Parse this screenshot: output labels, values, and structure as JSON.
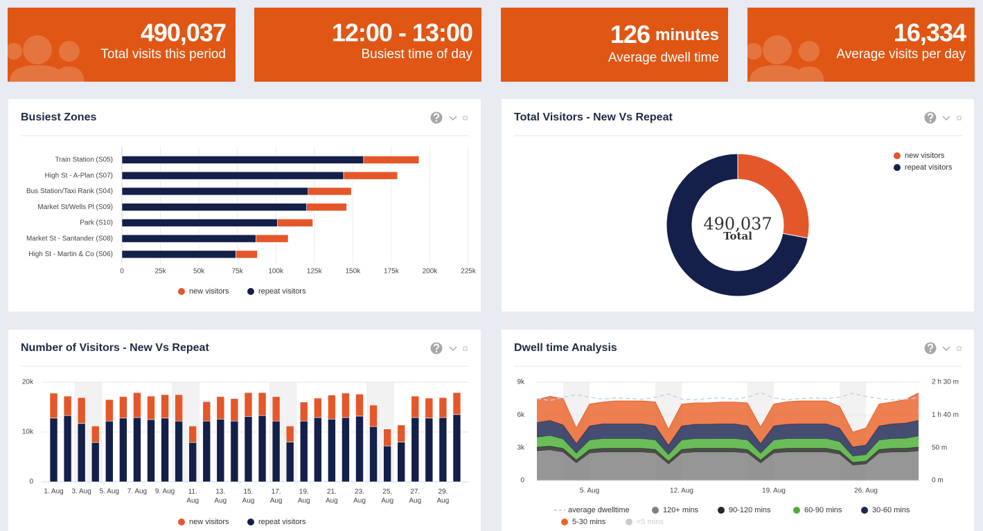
{
  "kpis": [
    {
      "value": "490,037",
      "label": "Total visits this period"
    },
    {
      "value": "12:00 - 13:00",
      "label": "Busiest time of day"
    },
    {
      "value": "126",
      "unit": "minutes",
      "label": "Average dwell time"
    },
    {
      "value": "16,334",
      "label": "Average visits per day"
    }
  ],
  "chart_data": [
    {
      "type": "bar",
      "title": "Busiest Zones",
      "categories": [
        "Train Station (S05)",
        "High St - A-Plan (S07)",
        "Bus Station/Taxi Rank (S04)",
        "Market St/Wells Pl (S09)",
        "Park (S10)",
        "Market St - Santander (S08)",
        "High St - Martin & Co (S06)"
      ],
      "series": [
        {
          "name": "new visitors",
          "color": "#e4572a",
          "values": [
            36000,
            35000,
            28000,
            26000,
            23000,
            21000,
            14000
          ]
        },
        {
          "name": "repeat visitors",
          "color": "#14204a",
          "values": [
            157000,
            144000,
            121000,
            120000,
            101000,
            87000,
            74000
          ]
        }
      ],
      "xlim": [
        0,
        225000
      ],
      "xticks": [
        0,
        {
          "value": 25000,
          "label": "25k"
        },
        {
          "value": 50000,
          "label": "50k"
        },
        {
          "value": 75000,
          "label": "75k"
        },
        {
          "value": 100000,
          "label": "100k"
        },
        {
          "value": 125000,
          "label": "125k"
        },
        {
          "value": 150000,
          "label": "150k"
        },
        {
          "value": 175000,
          "label": "175k"
        },
        {
          "value": 200000,
          "label": "200k"
        },
        {
          "value": 225000,
          "label": "225k"
        }
      ],
      "grid": true
    },
    {
      "type": "pie",
      "title": "Total Visitors - New Vs Repeat",
      "categories": [
        "new visitors",
        "repeat visitors"
      ],
      "values": [
        137000,
        353037
      ],
      "colors": [
        "#e4572a",
        "#14204a"
      ],
      "center_value": "490,037",
      "center_label": "Total"
    },
    {
      "type": "column",
      "title": "Number of Visitors - New Vs Repeat",
      "categories": [
        "1. Aug",
        null,
        "3. Aug",
        null,
        "5. Aug",
        null,
        "7. Aug",
        null,
        "9. Aug",
        null,
        "11. Aug",
        null,
        "13. Aug",
        null,
        "15. Aug",
        null,
        "17. Aug",
        null,
        "19. Aug",
        null,
        "21. Aug",
        null,
        "23. Aug",
        null,
        "25. Aug",
        null,
        "27. Aug",
        null,
        "29. Aug",
        null
      ],
      "series": [
        {
          "name": "new visitors",
          "color": "#e4572a",
          "values": [
            5000,
            3900,
            5200,
            3300,
            4300,
            4300,
            5000,
            4700,
            4700,
            5300,
            3300,
            3900,
            4500,
            4500,
            4800,
            4600,
            4900,
            3200,
            3800,
            3900,
            4800,
            4900,
            4400,
            4300,
            3400,
            3400,
            4300,
            4000,
            4000,
            4400
          ]
        },
        {
          "name": "repeat visitors",
          "color": "#14204a",
          "values": [
            12800,
            13300,
            11700,
            7900,
            12200,
            12800,
            12900,
            12500,
            12800,
            12200,
            7900,
            12200,
            12600,
            12200,
            13100,
            13300,
            12200,
            8000,
            12200,
            12900,
            12600,
            12900,
            13200,
            11100,
            7200,
            8000,
            12900,
            12800,
            12900,
            13500
          ]
        }
      ],
      "ylim": [
        0,
        20000
      ],
      "yticks": [
        0,
        {
          "value": 10000,
          "label": "10k"
        },
        {
          "value": 20000,
          "label": "20k"
        }
      ],
      "weekend_bands": [
        [
          2,
          3
        ],
        [
          9,
          10
        ],
        [
          16,
          17
        ],
        [
          23,
          24
        ]
      ],
      "grid": true
    },
    {
      "type": "area",
      "title": "Dwell time Analysis",
      "categories": [
        null,
        null,
        null,
        null,
        "5. Aug",
        null,
        null,
        null,
        null,
        null,
        null,
        "12. Aug",
        null,
        null,
        null,
        null,
        null,
        null,
        "19. Aug",
        null,
        null,
        null,
        null,
        null,
        null,
        "26. Aug",
        null,
        null,
        null,
        null
      ],
      "series": [
        {
          "name": "average dwelltime",
          "color": "#c3d1ef",
          "axis": "y2",
          "values": [
            125,
            122,
            127,
            131,
            127,
            124,
            126,
            125,
            124,
            127,
            132,
            124,
            123,
            125,
            126,
            124,
            127,
            134,
            126,
            123,
            125,
            126,
            125,
            127,
            133,
            128,
            125,
            123,
            124,
            126
          ]
        },
        {
          "name": "120+ mins",
          "color": "#7f7f7f",
          "values": [
            2700,
            2800,
            2600,
            1600,
            2500,
            2600,
            2600,
            2600,
            2600,
            2500,
            1500,
            2500,
            2600,
            2600,
            2600,
            2600,
            2500,
            1600,
            2500,
            2600,
            2600,
            2600,
            2600,
            2400,
            1400,
            1500,
            2500,
            2600,
            2600,
            2700
          ]
        },
        {
          "name": "90-120 mins",
          "color": "#262626",
          "values": [
            350,
            350,
            330,
            280,
            340,
            350,
            350,
            350,
            350,
            340,
            270,
            340,
            350,
            350,
            350,
            350,
            340,
            280,
            340,
            350,
            350,
            350,
            350,
            320,
            260,
            270,
            340,
            350,
            350,
            360
          ]
        },
        {
          "name": "60-90 mins",
          "color": "#4caf34",
          "values": [
            900,
            950,
            850,
            600,
            850,
            880,
            880,
            880,
            880,
            850,
            580,
            850,
            870,
            870,
            880,
            880,
            860,
            600,
            850,
            870,
            880,
            880,
            880,
            820,
            560,
            580,
            850,
            880,
            900,
            1000
          ]
        },
        {
          "name": "30-60 mins",
          "color": "#1c2752",
          "values": [
            1350,
            1400,
            1300,
            900,
            1300,
            1350,
            1350,
            1350,
            1350,
            1300,
            880,
            1300,
            1330,
            1330,
            1350,
            1350,
            1300,
            900,
            1300,
            1330,
            1350,
            1350,
            1350,
            1250,
            850,
            900,
            1300,
            1350,
            1400,
            1450
          ]
        },
        {
          "name": "5-30 mins",
          "color": "#e9632b",
          "values": [
            2100,
            2200,
            2420,
            1420,
            2000,
            2000,
            2100,
            2100,
            2100,
            2200,
            1450,
            2000,
            1950,
            1950,
            2000,
            2000,
            2100,
            1500,
            2000,
            2050,
            2100,
            2100,
            2100,
            2000,
            1350,
            1550,
            2000,
            2000,
            2150,
            2500
          ]
        }
      ],
      "hidden_series": [
        {
          "name": "<5 mins",
          "color": "#cccccc"
        }
      ],
      "ylim": [
        0,
        9000
      ],
      "yticks": [
        0,
        {
          "value": 3000,
          "label": "3k"
        },
        {
          "value": 6000,
          "label": "6k"
        },
        {
          "value": 9000,
          "label": "9k"
        }
      ],
      "y2lim": [
        0,
        150
      ],
      "y2ticks": [
        {
          "value": 0,
          "label": "0 m"
        },
        {
          "value": 50,
          "label": "50 m"
        },
        {
          "value": 100,
          "label": "1 h 40 m"
        },
        {
          "value": 150,
          "label": "2 h 30 m"
        }
      ],
      "weekend_bands": [
        [
          2,
          3
        ],
        [
          9,
          10
        ],
        [
          16,
          17
        ],
        [
          23,
          24
        ]
      ],
      "grid": true
    }
  ]
}
